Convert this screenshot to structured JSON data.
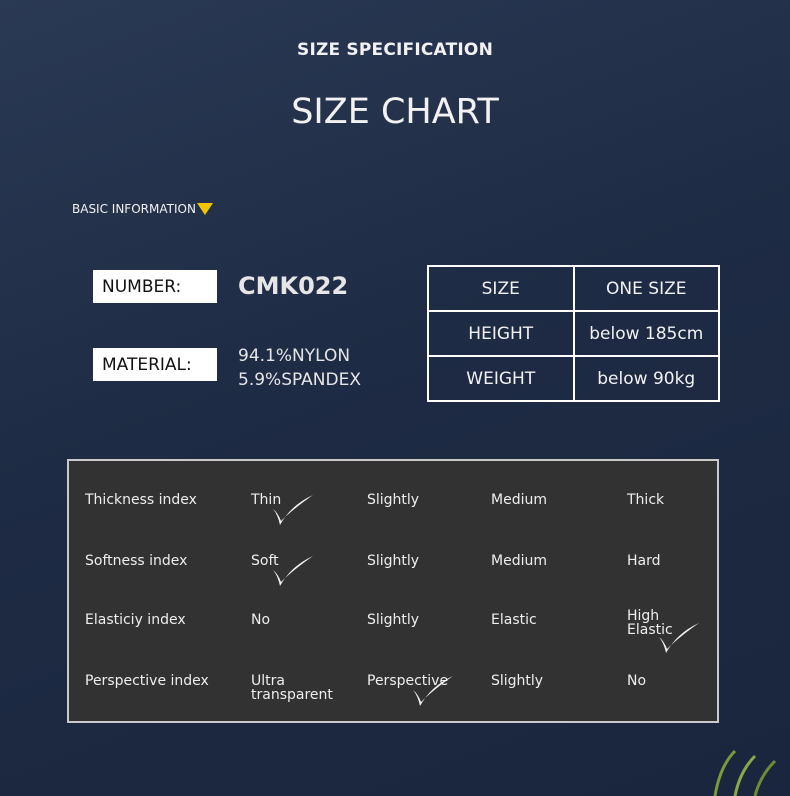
{
  "header": {
    "subtitle": "SIZE SPECIFICATION",
    "title": "SIZE CHART"
  },
  "basic_info": {
    "label": "BASIC INFORMATION",
    "marker_color": "#f5c400"
  },
  "number": {
    "label": "NUMBER:",
    "value": "CMK022"
  },
  "material": {
    "label": "MATERIAL:",
    "lines": [
      "94.1%NYLON",
      "5.9%SPANDEX"
    ]
  },
  "size_table": [
    [
      "SIZE",
      "ONE SIZE"
    ],
    [
      "HEIGHT",
      "below 185cm"
    ],
    [
      "WEIGHT",
      "below 90kg"
    ]
  ],
  "indices": [
    {
      "name": "Thickness index",
      "options": [
        "Thin",
        "Slightly",
        "Medium",
        "Thick"
      ],
      "checked": 0
    },
    {
      "name": "Softness index",
      "options": [
        "Soft",
        "Slightly",
        "Medium",
        "Hard"
      ],
      "checked": 0
    },
    {
      "name": "Elasticiy index",
      "options": [
        "No",
        "Slightly",
        "Elastic",
        "High\nElastic"
      ],
      "checked": 3
    },
    {
      "name": "Perspective index",
      "options": [
        "Ultra\ntransparent",
        "Perspective",
        "Slightly",
        "No"
      ],
      "checked": 1
    }
  ]
}
